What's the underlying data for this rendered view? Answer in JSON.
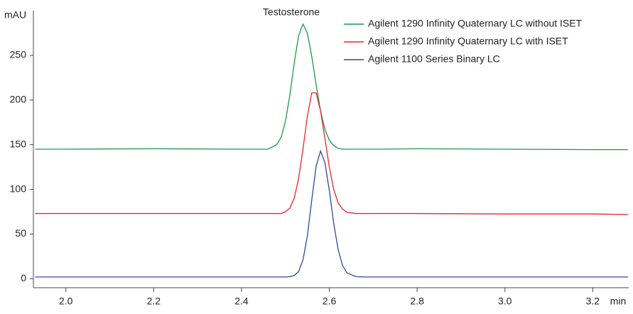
{
  "chart_data": {
    "type": "line",
    "annotation": "Testosterone",
    "y_label": "mAU",
    "x_label": "min",
    "x": [
      1.93,
      2.0,
      2.2,
      2.4,
      2.44,
      2.46,
      2.48,
      2.49,
      2.5,
      2.51,
      2.52,
      2.53,
      2.54,
      2.55,
      2.56,
      2.57,
      2.58,
      2.59,
      2.6,
      2.61,
      2.62,
      2.63,
      2.64,
      2.66,
      2.68,
      2.72,
      2.8,
      3.0,
      3.2,
      3.28
    ],
    "series": [
      {
        "name": "Agilent 1290 Infinity Quaternary LC without ISET",
        "color": "#1a9a4a",
        "values": [
          145,
          145,
          145.5,
          145,
          145,
          145,
          150,
          158,
          176,
          205,
          241,
          272,
          285,
          275,
          249,
          217,
          188,
          167,
          155,
          149,
          146,
          145,
          145,
          145,
          145,
          145,
          145.5,
          145,
          144.5,
          144.5
        ]
      },
      {
        "name": "Agilent 1290 Infinity Quaternary LC with ISET",
        "color": "#e8262a",
        "values": [
          73,
          73,
          73,
          73,
          73,
          73,
          73,
          73,
          75,
          79,
          90,
          112,
          145,
          182,
          208,
          208,
          188,
          157,
          125,
          100,
          85,
          78,
          74.5,
          73,
          73,
          73,
          73,
          72.5,
          72.5,
          72
        ]
      },
      {
        "name": "Agilent 1100 Series Binary LC",
        "color": "#2b4c9b",
        "values": [
          2,
          2,
          2,
          2,
          2,
          2,
          2,
          2,
          2,
          2.3,
          3.6,
          8,
          21,
          48,
          88,
          126,
          143,
          130,
          99,
          62,
          33,
          15,
          6.7,
          2.4,
          2,
          2,
          2,
          2,
          2,
          2
        ]
      }
    ],
    "xlim": [
      1.926,
      3.282
    ],
    "xticks": [
      {
        "value": 2.0,
        "label": "2.0"
      },
      2.2,
      2.4,
      2.6,
      2.8,
      {
        "value": 3.0,
        "label": "3.0"
      },
      3.2
    ],
    "ylim": [
      -10,
      300
    ],
    "yticks": [
      0,
      50,
      100,
      150,
      200,
      250
    ],
    "legend": "upper right",
    "grid": false
  }
}
